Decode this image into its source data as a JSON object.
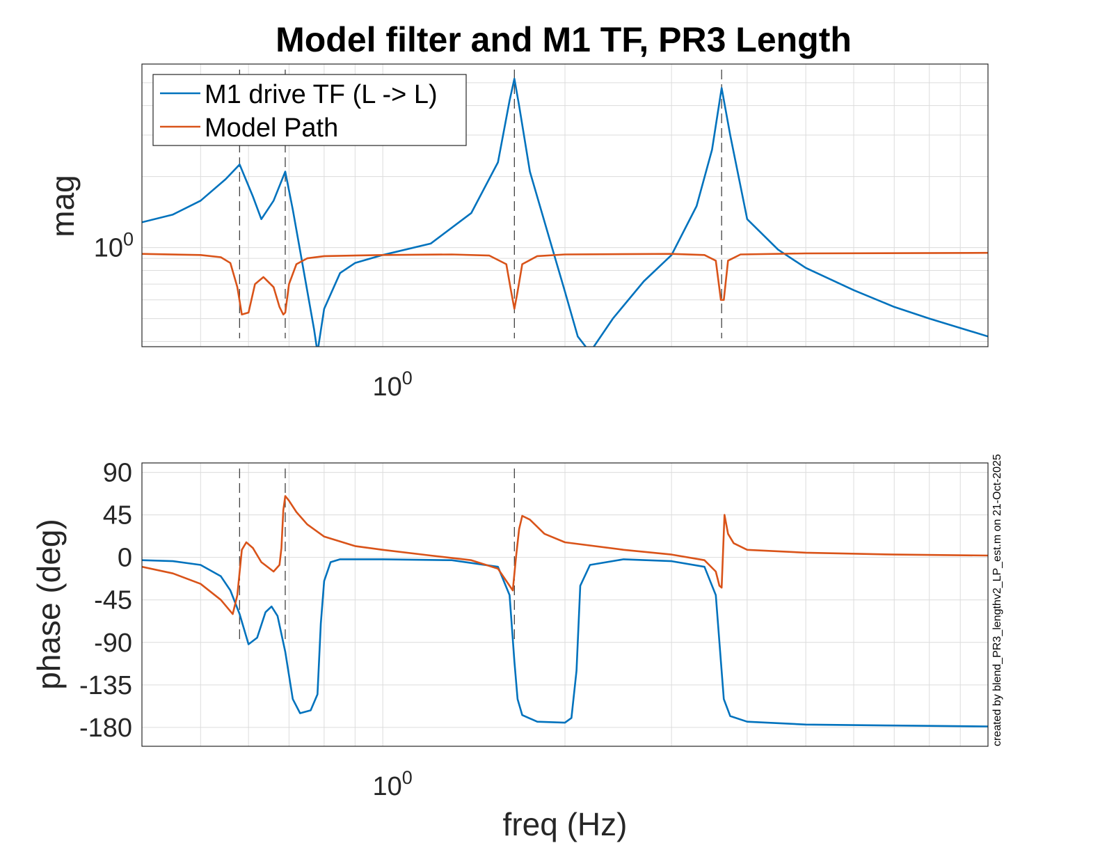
{
  "title": "Model filter and M1 TF, PR3 Length",
  "footer_note": "created by blend_PR3_lengthv2_LP_est.m on 21-Oct-2025",
  "colors": {
    "m1": "#0072BD",
    "model": "#D95319",
    "grid": "#dcdcdc",
    "text": "#262626"
  },
  "chart_data": [
    {
      "type": "line",
      "panel": "magnitude",
      "title": "Model filter and M1 TF, PR3 Length",
      "xlabel": "",
      "ylabel": "mag",
      "xscale": "log",
      "yscale": "log",
      "xlim": [
        0.4,
        10
      ],
      "ylim": [
        0.38,
        6
      ],
      "x_ticks": [
        {
          "value": 1,
          "base": "10",
          "exp": "0"
        }
      ],
      "y_ticks": [
        {
          "value": 1,
          "base": "10",
          "exp": "0"
        }
      ],
      "grid": true,
      "legend": {
        "placement": "top-left",
        "entries": [
          "M1 drive TF (L -> L)",
          "Model Path"
        ]
      },
      "resonance_markers_hz": [
        0.58,
        0.69,
        1.65,
        3.63
      ],
      "series": [
        {
          "name": "M1 drive TF (L -> L)",
          "color": "#0072BD",
          "x": [
            0.4,
            0.45,
            0.5,
            0.55,
            0.58,
            0.61,
            0.63,
            0.66,
            0.69,
            0.71,
            0.74,
            0.77,
            0.78,
            0.8,
            0.85,
            0.9,
            1.0,
            1.2,
            1.4,
            1.55,
            1.62,
            1.65,
            1.68,
            1.75,
            1.9,
            2.0,
            2.1,
            2.2,
            2.4,
            2.7,
            3.0,
            3.3,
            3.5,
            3.63,
            3.75,
            4.0,
            4.5,
            5.0,
            6.0,
            7.0,
            8.0,
            10.0
          ],
          "y": [
            1.28,
            1.38,
            1.58,
            1.95,
            2.25,
            1.65,
            1.32,
            1.58,
            2.1,
            1.45,
            0.8,
            0.45,
            0.36,
            0.55,
            0.78,
            0.86,
            0.93,
            1.04,
            1.4,
            2.3,
            4.2,
            5.2,
            4.0,
            2.1,
            1.02,
            0.65,
            0.42,
            0.36,
            0.5,
            0.72,
            0.93,
            1.5,
            2.6,
            4.75,
            3.0,
            1.32,
            0.98,
            0.82,
            0.66,
            0.56,
            0.5,
            0.42
          ]
        },
        {
          "name": "Model Path",
          "color": "#D95319",
          "x": [
            0.4,
            0.5,
            0.54,
            0.56,
            0.575,
            0.585,
            0.6,
            0.615,
            0.635,
            0.66,
            0.675,
            0.685,
            0.69,
            0.7,
            0.72,
            0.75,
            0.8,
            1.0,
            1.3,
            1.5,
            1.6,
            1.63,
            1.65,
            1.67,
            1.7,
            1.8,
            2.0,
            3.0,
            3.4,
            3.55,
            3.62,
            3.66,
            3.72,
            3.9,
            5.0,
            10.0
          ],
          "y": [
            0.94,
            0.93,
            0.91,
            0.86,
            0.68,
            0.52,
            0.53,
            0.7,
            0.75,
            0.68,
            0.56,
            0.52,
            0.53,
            0.7,
            0.85,
            0.9,
            0.92,
            0.93,
            0.935,
            0.925,
            0.85,
            0.65,
            0.55,
            0.65,
            0.85,
            0.92,
            0.935,
            0.94,
            0.93,
            0.88,
            0.6,
            0.6,
            0.88,
            0.935,
            0.945,
            0.95
          ]
        }
      ]
    },
    {
      "type": "line",
      "panel": "phase",
      "title": "",
      "xlabel": "freq (Hz)",
      "ylabel": "phase (deg)",
      "xscale": "log",
      "xlim": [
        0.4,
        10
      ],
      "ylim": [
        -200,
        100
      ],
      "x_ticks": [
        {
          "value": 1,
          "base": "10",
          "exp": "0"
        }
      ],
      "y_ticks": [
        90,
        45,
        0,
        -45,
        -90,
        -135,
        -180
      ],
      "grid": true,
      "resonance_markers_hz": [
        0.58,
        0.69,
        1.65
      ],
      "series": [
        {
          "name": "M1 drive TF (L -> L)",
          "color": "#0072BD",
          "x": [
            0.4,
            0.45,
            0.5,
            0.54,
            0.56,
            0.58,
            0.6,
            0.62,
            0.64,
            0.655,
            0.67,
            0.69,
            0.71,
            0.73,
            0.76,
            0.78,
            0.79,
            0.8,
            0.82,
            0.85,
            1.0,
            1.3,
            1.55,
            1.62,
            1.65,
            1.67,
            1.7,
            1.8,
            2.0,
            2.05,
            2.09,
            2.12,
            2.2,
            2.5,
            3.0,
            3.4,
            3.55,
            3.62,
            3.66,
            3.75,
            4.0,
            5.0,
            7.0,
            10.0
          ],
          "y": [
            -3,
            -4,
            -8,
            -20,
            -35,
            -60,
            -92,
            -85,
            -58,
            -52,
            -62,
            -100,
            -150,
            -165,
            -162,
            -145,
            -70,
            -25,
            -5,
            -2,
            -2,
            -3,
            -10,
            -40,
            -110,
            -150,
            -167,
            -174,
            -175,
            -170,
            -120,
            -30,
            -8,
            -2,
            -4,
            -10,
            -40,
            -110,
            -150,
            -168,
            -174,
            -177,
            -178,
            -179
          ]
        },
        {
          "name": "Model Path",
          "color": "#D95319",
          "x": [
            0.4,
            0.45,
            0.5,
            0.54,
            0.565,
            0.575,
            0.585,
            0.595,
            0.61,
            0.63,
            0.66,
            0.675,
            0.68,
            0.685,
            0.69,
            0.7,
            0.72,
            0.75,
            0.8,
            0.9,
            1.0,
            1.2,
            1.4,
            1.55,
            1.62,
            1.64,
            1.66,
            1.68,
            1.7,
            1.75,
            1.85,
            2.0,
            2.5,
            3.0,
            3.4,
            3.55,
            3.6,
            3.63,
            3.67,
            3.72,
            3.8,
            4.0,
            5.0,
            7.0,
            10.0
          ],
          "y": [
            -10,
            -17,
            -28,
            -45,
            -60,
            -40,
            8,
            16,
            10,
            -5,
            -15,
            -8,
            10,
            50,
            65,
            60,
            48,
            35,
            22,
            12,
            8,
            2,
            -3,
            -12,
            -30,
            -35,
            0,
            30,
            44,
            40,
            25,
            16,
            8,
            3,
            -3,
            -15,
            -30,
            -32,
            45,
            25,
            15,
            8,
            5,
            3,
            2
          ]
        }
      ]
    }
  ]
}
